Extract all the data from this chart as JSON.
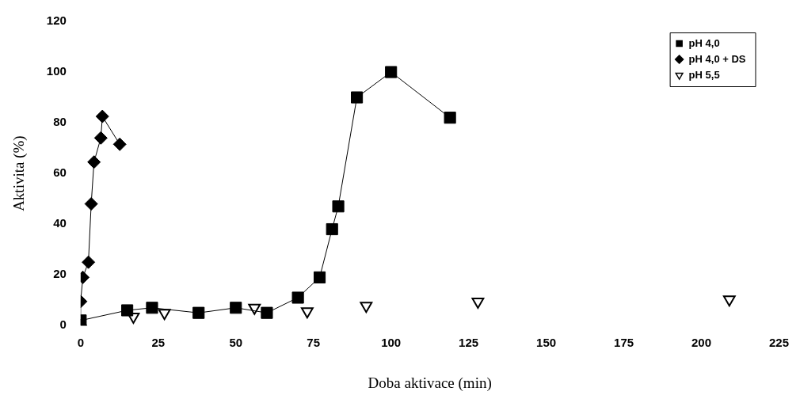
{
  "chart_data": {
    "type": "line",
    "xlabel": "Doba aktivace (min)",
    "ylabel": "Aktivita (%)",
    "xlim": [
      0,
      225
    ],
    "xticks": [
      0,
      25,
      50,
      75,
      100,
      125,
      150,
      175,
      200,
      225
    ],
    "ylim": [
      0,
      120
    ],
    "yticks": [
      0,
      20,
      40,
      60,
      80,
      100,
      120
    ],
    "grid": false,
    "legend": "top right",
    "series": [
      {
        "name": "pH 4,0",
        "type": "line",
        "marker": "square",
        "color": "#000000",
        "x": [
          0,
          15,
          23,
          38,
          50,
          60,
          70,
          77,
          81,
          83,
          89,
          100,
          119
        ],
        "values": [
          2,
          6,
          7,
          5,
          7,
          5,
          11,
          19,
          38,
          47,
          90,
          100,
          82
        ]
      },
      {
        "name": "pH 4,0 + DS",
        "type": "line",
        "marker": "diamond",
        "color": "#000000",
        "x": [
          0,
          0,
          0.7,
          2.5,
          3.4,
          4.3,
          6.5,
          7,
          12.6
        ],
        "values": [
          0,
          9.5,
          19,
          25,
          48,
          64.5,
          74,
          82.5,
          71.5
        ]
      },
      {
        "name": "pH 5,5",
        "type": "scatter",
        "marker": "triangle",
        "color": "#000000",
        "x": [
          17,
          27,
          56,
          73,
          92,
          128,
          209
        ],
        "values": [
          3.5,
          5,
          7,
          5.6,
          7.8,
          9.4,
          10.3
        ]
      }
    ]
  }
}
